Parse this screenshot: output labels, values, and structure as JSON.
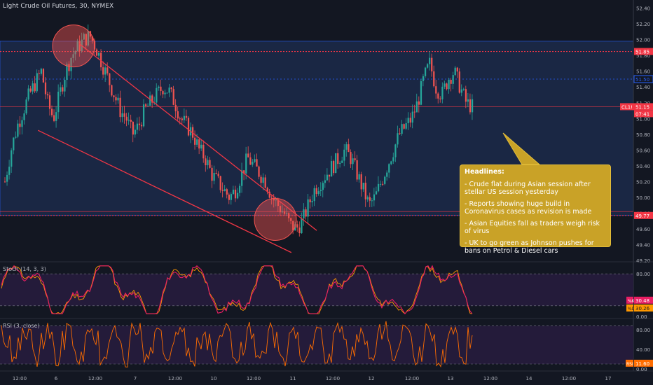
{
  "title": "Light Crude Oil Futures, 30, NYMEX",
  "colors": {
    "background": "#131722",
    "up": "#26a69a",
    "down": "#ef5350",
    "trendline": "#f23645",
    "zone": "#1e2d4f",
    "stoch_k": "#e91e63",
    "stoch_d": "#ff9800",
    "rsi": "#ff6d00",
    "note": "#c9a227"
  },
  "price_axis": {
    "ticks": [
      "52.40",
      "52.20",
      "52.00",
      "51.80",
      "51.60",
      "51.40",
      "51.20",
      "51.00",
      "50.80",
      "50.60",
      "50.40",
      "50.20",
      "50.00",
      "49.80",
      "49.60",
      "49.40",
      "49.20"
    ],
    "labels": [
      {
        "text": "51.85",
        "value": 51.85,
        "color": "#f23645"
      },
      {
        "text": "51.50",
        "value": 51.5,
        "color": "#2962ff"
      },
      {
        "text": "CL1!",
        "value": 51.15,
        "color": "#f23645"
      },
      {
        "text": "51.15",
        "value": 51.15,
        "color": "#f23645"
      },
      {
        "text": "07:41",
        "value": 51.05,
        "color": "#f23645"
      },
      {
        "text": "49.77",
        "value": 49.77,
        "color": "#f23645"
      }
    ]
  },
  "time_axis": [
    "12:00",
    "6",
    "12:00",
    "7",
    "12:00",
    "10",
    "12:00",
    "11",
    "12:00",
    "12",
    "12:00",
    "13",
    "12:00",
    "14",
    "12:00",
    "17"
  ],
  "chart_data": {
    "type": "candlestick",
    "title": "Light Crude Oil Futures, 30, NYMEX",
    "ylim": [
      49.2,
      52.45
    ],
    "levels": [
      {
        "name": "resistance",
        "value": 51.85,
        "style": "dotted red"
      },
      {
        "name": "zone_top",
        "value": 51.98
      },
      {
        "name": "mid",
        "value": 51.5
      },
      {
        "name": "zone_bottom",
        "value": 51.03
      },
      {
        "name": "support",
        "value": 49.77,
        "style": "dotted red"
      }
    ],
    "close_path": [
      50.2,
      50.6,
      50.9,
      51.1,
      51.3,
      51.45,
      51.6,
      51.2,
      51.0,
      51.3,
      51.6,
      51.8,
      51.9,
      52.0,
      52.05,
      51.9,
      51.7,
      51.5,
      51.3,
      51.1,
      51.0,
      50.8,
      50.9,
      51.1,
      51.2,
      51.3,
      51.4,
      51.35,
      51.2,
      51.0,
      50.9,
      50.8,
      50.6,
      50.5,
      50.3,
      50.2,
      50.1,
      50.0,
      50.1,
      50.3,
      50.5,
      50.4,
      50.3,
      50.2,
      50.0,
      49.9,
      49.8,
      49.65,
      49.6,
      49.7,
      49.9,
      50.1,
      50.2,
      50.3,
      50.4,
      50.5,
      50.6,
      50.5,
      50.3,
      50.1,
      49.9,
      50.0,
      50.2,
      50.4,
      50.6,
      50.8,
      50.9,
      51.0,
      51.2,
      51.5,
      51.7,
      51.4,
      51.3,
      51.5,
      51.6,
      51.4,
      51.2,
      51.15
    ],
    "trendlines": [
      {
        "from": [
          0.125,
          51.95
        ],
        "to": [
          0.5,
          49.58
        ]
      },
      {
        "from": [
          0.06,
          50.85
        ],
        "to": [
          0.46,
          49.3
        ]
      }
    ],
    "stoch": {
      "name": "Stoch (14, 3, 3)",
      "ylim": [
        0,
        100
      ],
      "ticks": [
        "80.00",
        "20.00",
        "0.00"
      ],
      "k_label": "%K",
      "k_value": "30.48",
      "d_label": "%D",
      "d_value": "30.26"
    },
    "rsi": {
      "name": "RSI (3, close)",
      "ylim": [
        0,
        100
      ],
      "ticks": [
        "80.00",
        "40.00",
        "0.00"
      ],
      "value_label": "RSI",
      "value": "11.60"
    }
  },
  "note": {
    "heading": "Headlines:",
    "items": [
      "- Crude flat during Asian session after stellar US session yesterday",
      "- Reports showing huge build in Coronavirus cases as revision is made",
      "- Asian Equities fall as traders weigh risk of virus",
      "- UK to go green as Johnson pushes for bans on Petrol & Diesel cars"
    ]
  }
}
